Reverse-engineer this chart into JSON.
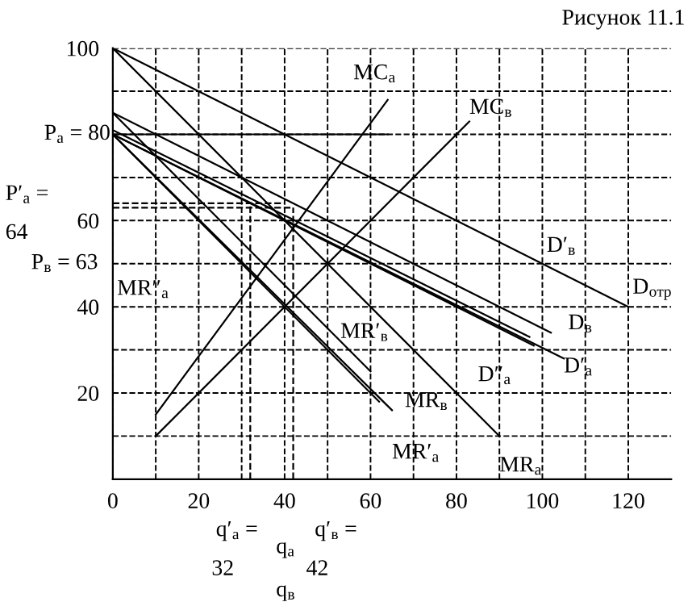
{
  "chart_data": {
    "type": "line",
    "title": "Рисунок 11.1",
    "xlim": [
      0,
      130
    ],
    "ylim": [
      0,
      100
    ],
    "xticks": [
      0,
      {
        "value": 10,
        "label": null
      },
      20,
      {
        "value": 30,
        "label": null
      },
      40,
      {
        "value": 50,
        "label": null
      },
      60,
      {
        "value": 70,
        "label": null
      },
      80,
      {
        "value": 90,
        "label": null
      },
      100,
      {
        "value": 110,
        "label": null
      },
      120
    ],
    "yticks": [
      {
        "value": 10,
        "label": null
      },
      20,
      {
        "value": 30,
        "label": null
      },
      40,
      {
        "value": 50,
        "label": null
      },
      60,
      {
        "value": 70,
        "label": null
      },
      {
        "value": 80,
        "label": null
      },
      {
        "value": 90,
        "label": null
      },
      100
    ],
    "grid": true,
    "marker": "none",
    "series": [
      {
        "color": "#000000",
        "line_style": "solid",
        "x": [
          0,
          120
        ],
        "values": [
          100,
          40
        ]
      },
      {
        "color": "#000000",
        "line_style": "solid",
        "x": [
          0,
          90
        ],
        "values": [
          100,
          10
        ]
      },
      {
        "color": "#000000",
        "line_style": "solid",
        "x": [
          0,
          102
        ],
        "values": [
          85,
          34
        ]
      },
      {
        "color": "#000000",
        "line_style": "solid",
        "x": [
          0,
          60
        ],
        "values": [
          85,
          25
        ]
      },
      {
        "color": "#000000",
        "line_style": "solid",
        "x": [
          0,
          105
        ],
        "values": [
          80,
          28
        ]
      },
      {
        "color": "#000000",
        "line_style": "solid",
        "x": [
          0,
          98
        ],
        "values": [
          80,
          31
        ]
      },
      {
        "color": "#000000",
        "line_style": "solid",
        "x": [
          0,
          97
        ],
        "values": [
          81,
          33
        ]
      },
      {
        "color": "#000000",
        "line_style": "solid",
        "x": [
          0,
          62
        ],
        "values": [
          80,
          18
        ]
      },
      {
        "color": "#000000",
        "line_style": "solid",
        "x": [
          0,
          65
        ],
        "values": [
          80,
          16
        ]
      },
      {
        "color": "#000000",
        "line_style": "solid",
        "x": [
          10,
          64
        ],
        "values": [
          15,
          88
        ]
      },
      {
        "color": "#000000",
        "line_style": "solid",
        "x": [
          10,
          83
        ],
        "values": [
          10,
          83
        ]
      },
      {
        "color": "#000000",
        "line_style": "solid",
        "x": [
          0,
          64
        ],
        "values": [
          80,
          80
        ]
      },
      {
        "color": "#000000",
        "line_style": "dashed",
        "x": [
          0,
          40
        ],
        "values": [
          64,
          64
        ]
      },
      {
        "color": "#000000",
        "line_style": "dashed",
        "x": [
          0,
          42
        ],
        "values": [
          63,
          63
        ]
      },
      {
        "color": "#000000",
        "line_style": "dashed",
        "x": [
          32,
          32
        ],
        "values": [
          0,
          64
        ]
      },
      {
        "color": "#000000",
        "line_style": "dashed",
        "x": [
          42,
          42
        ],
        "values": [
          0,
          63
        ]
      }
    ],
    "annotations": [
      "MC$_{а}$",
      "MC$_{в}$",
      "D$_{отр}$",
      "D′$_{в}$",
      "D$_{в}$",
      "D′$_{а}$",
      "D″$_{а}$",
      "MR′$_{в}$",
      "MR$_{в}$",
      "MR′$_{а}$",
      "MR$_{а}$",
      "MR″$_{а}$",
      "P$_{а}$ = 80",
      "P′$_{а}$ =",
      "64",
      "P$_{в}$ = 63",
      "q′$_{а}$ =",
      "32",
      "q$_{а}$",
      "q$_{в}$",
      "q′$_{в}$ =",
      "42"
    ]
  }
}
